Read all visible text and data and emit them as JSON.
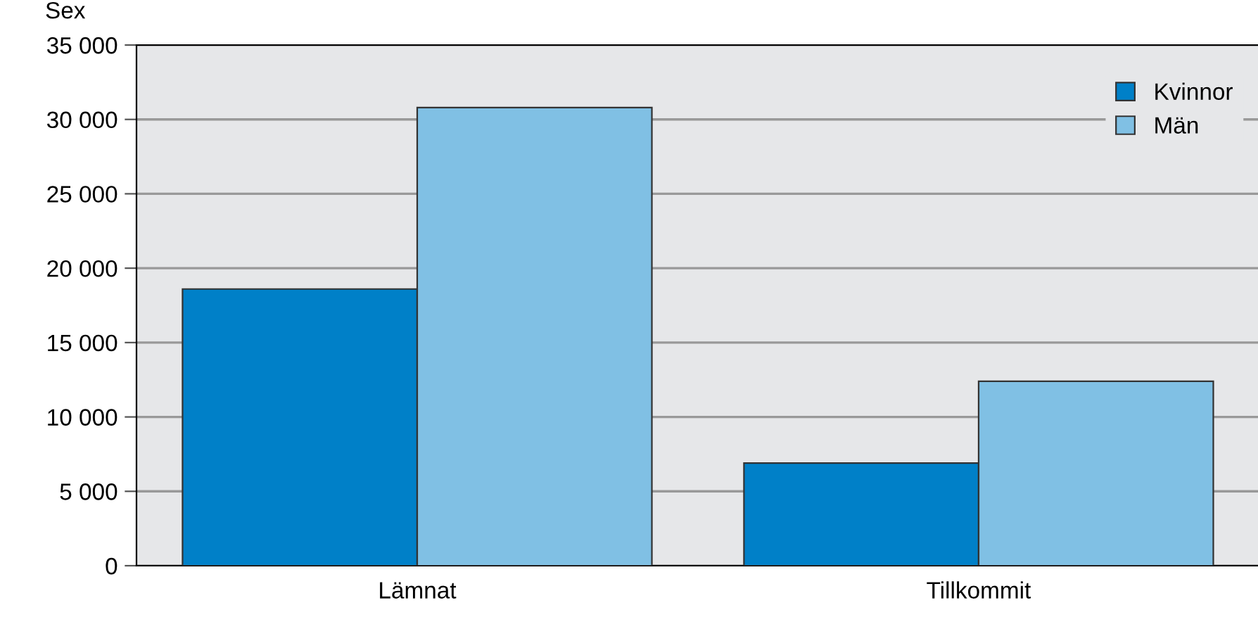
{
  "chart_data": {
    "type": "bar",
    "ylabel": "Sex",
    "categories": [
      "Lämnat",
      "Tillkommit"
    ],
    "series": [
      {
        "name": "Kvinnor",
        "color": "#0080c8",
        "values": [
          18600,
          6900
        ]
      },
      {
        "name": "Män",
        "color": "#80c0e4",
        "values": [
          30800,
          12400
        ]
      }
    ],
    "ylim": [
      0,
      35000
    ],
    "yticks": [
      {
        "value": 0,
        "label": "0"
      },
      {
        "value": 5000,
        "label": "5 000"
      },
      {
        "value": 10000,
        "label": "10 000"
      },
      {
        "value": 15000,
        "label": "15 000"
      },
      {
        "value": 20000,
        "label": "20 000"
      },
      {
        "value": 25000,
        "label": "25 000"
      },
      {
        "value": 30000,
        "label": "30 000"
      },
      {
        "value": 35000,
        "label": "35 000"
      }
    ],
    "grid": "y",
    "legend": "top right"
  }
}
